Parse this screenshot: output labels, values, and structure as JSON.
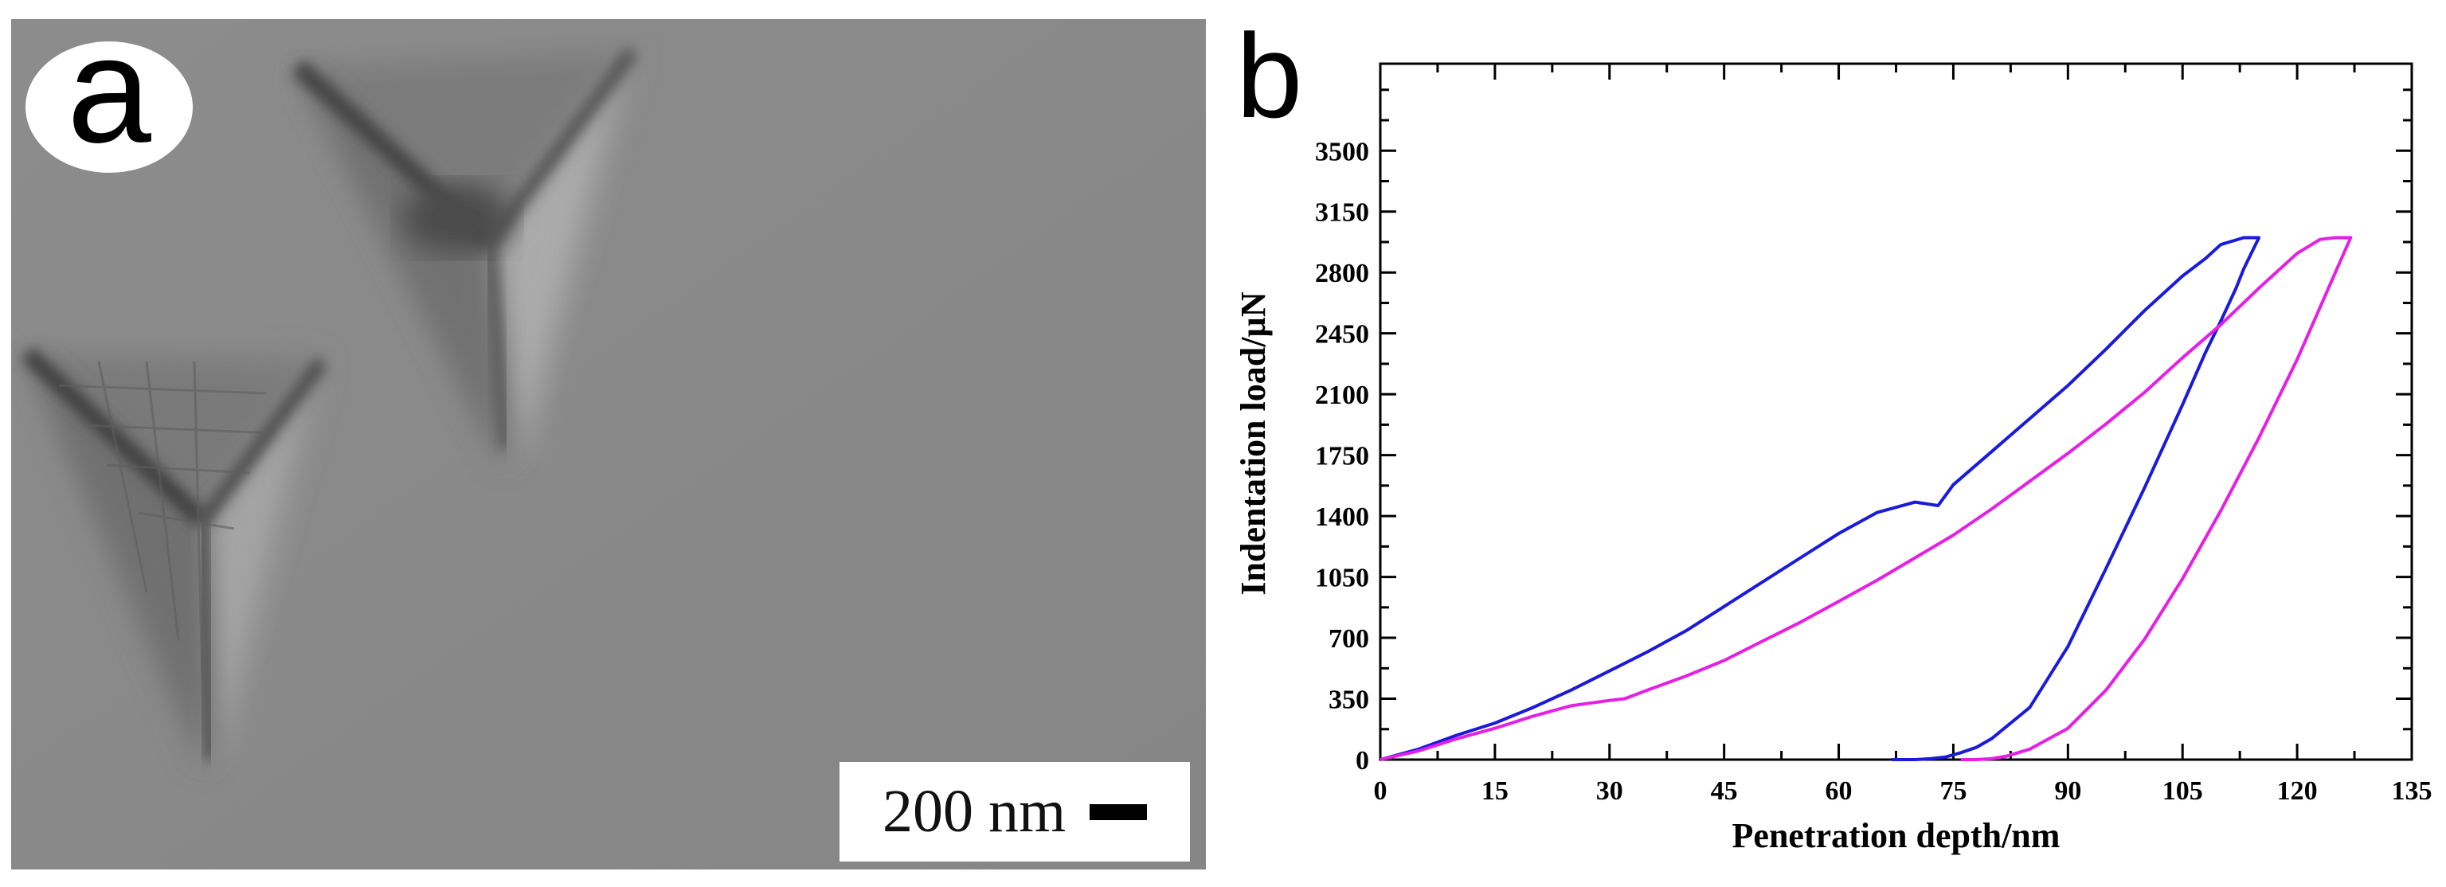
{
  "panel_a": {
    "label": "a",
    "scale_text": "200 nm",
    "description_colors": {
      "background": "#8a8a8a",
      "shadow": "#4a4a4a",
      "highlight": "#b5b5b5"
    }
  },
  "panel_b": {
    "label": "b"
  },
  "chart_data": {
    "type": "line",
    "xlabel": "Penetration depth/nm",
    "ylabel": "Indentation load/µN",
    "xlim": [
      0,
      135
    ],
    "ylim": [
      0,
      4000
    ],
    "xticks": [
      0,
      15,
      30,
      45,
      60,
      75,
      90,
      105,
      120,
      135
    ],
    "yticks": [
      0,
      350,
      700,
      1050,
      1400,
      1750,
      2100,
      2450,
      2800,
      3150,
      3500
    ],
    "grid": false,
    "series": [
      {
        "name": "blue",
        "color": "#1a1adc",
        "x": [
          0,
          5,
          10,
          15,
          20,
          25,
          30,
          35,
          40,
          45,
          50,
          55,
          60,
          65,
          70,
          73,
          75,
          80,
          85,
          90,
          95,
          100,
          105,
          108,
          110,
          113,
          115,
          113,
          112,
          110,
          108,
          105,
          100,
          95,
          90,
          85,
          80,
          78,
          76,
          74,
          72,
          70,
          68,
          67
        ],
        "y": [
          0,
          60,
          140,
          210,
          300,
          400,
          510,
          620,
          740,
          880,
          1020,
          1160,
          1300,
          1420,
          1480,
          1460,
          1580,
          1770,
          1960,
          2150,
          2360,
          2580,
          2780,
          2880,
          2960,
          3000,
          3000,
          2820,
          2710,
          2520,
          2340,
          2040,
          1560,
          1100,
          650,
          300,
          120,
          70,
          40,
          15,
          5,
          0,
          0,
          0
        ]
      },
      {
        "name": "magenta",
        "color": "#e61ee6",
        "x": [
          0,
          5,
          10,
          15,
          20,
          25,
          30,
          32,
          35,
          40,
          45,
          50,
          55,
          60,
          65,
          70,
          75,
          80,
          85,
          90,
          95,
          100,
          105,
          110,
          115,
          120,
          123,
          125,
          127,
          125,
          123,
          120,
          115,
          110,
          105,
          100,
          95,
          90,
          85,
          82,
          80,
          78,
          76
        ],
        "y": [
          0,
          50,
          120,
          180,
          250,
          310,
          340,
          350,
          400,
          480,
          570,
          680,
          790,
          910,
          1030,
          1160,
          1290,
          1440,
          1600,
          1760,
          1930,
          2110,
          2310,
          2500,
          2710,
          2910,
          2990,
          3000,
          3000,
          2800,
          2600,
          2300,
          1850,
          1430,
          1040,
          690,
          400,
          180,
          60,
          20,
          5,
          0,
          0
        ]
      }
    ]
  }
}
